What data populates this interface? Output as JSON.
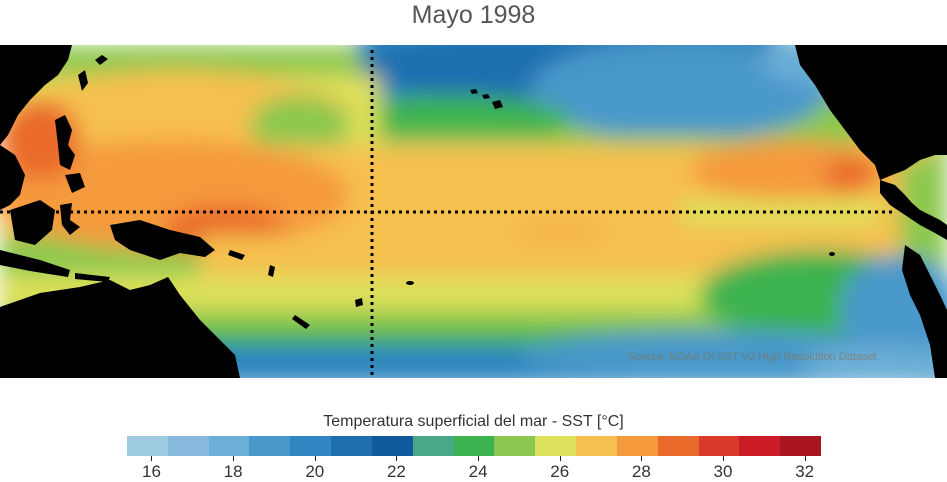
{
  "title": "Mayo 1998",
  "colorbar": {
    "title": "Temperatura superficial del mar - SST  [°C]",
    "ticks": [
      "16",
      "18",
      "20",
      "22",
      "24",
      "26",
      "28",
      "30",
      "32"
    ],
    "colors": [
      "#9ecae1",
      "#86b9dc",
      "#6baed6",
      "#4a98cb",
      "#2f86c0",
      "#1f6fb0",
      "#10599c",
      "#4aa88a",
      "#3db350",
      "#8cc850",
      "#dde05a",
      "#f6c050",
      "#f59a3c",
      "#ea6a2c",
      "#d8392a",
      "#cc1c28",
      "#aa1620"
    ]
  },
  "source": "Source: NOAA OI SST V2 High Resolution Dataset",
  "map": {
    "land_color": "#000000",
    "reference_line": "dotted",
    "reference_line_color": "#000000"
  }
}
